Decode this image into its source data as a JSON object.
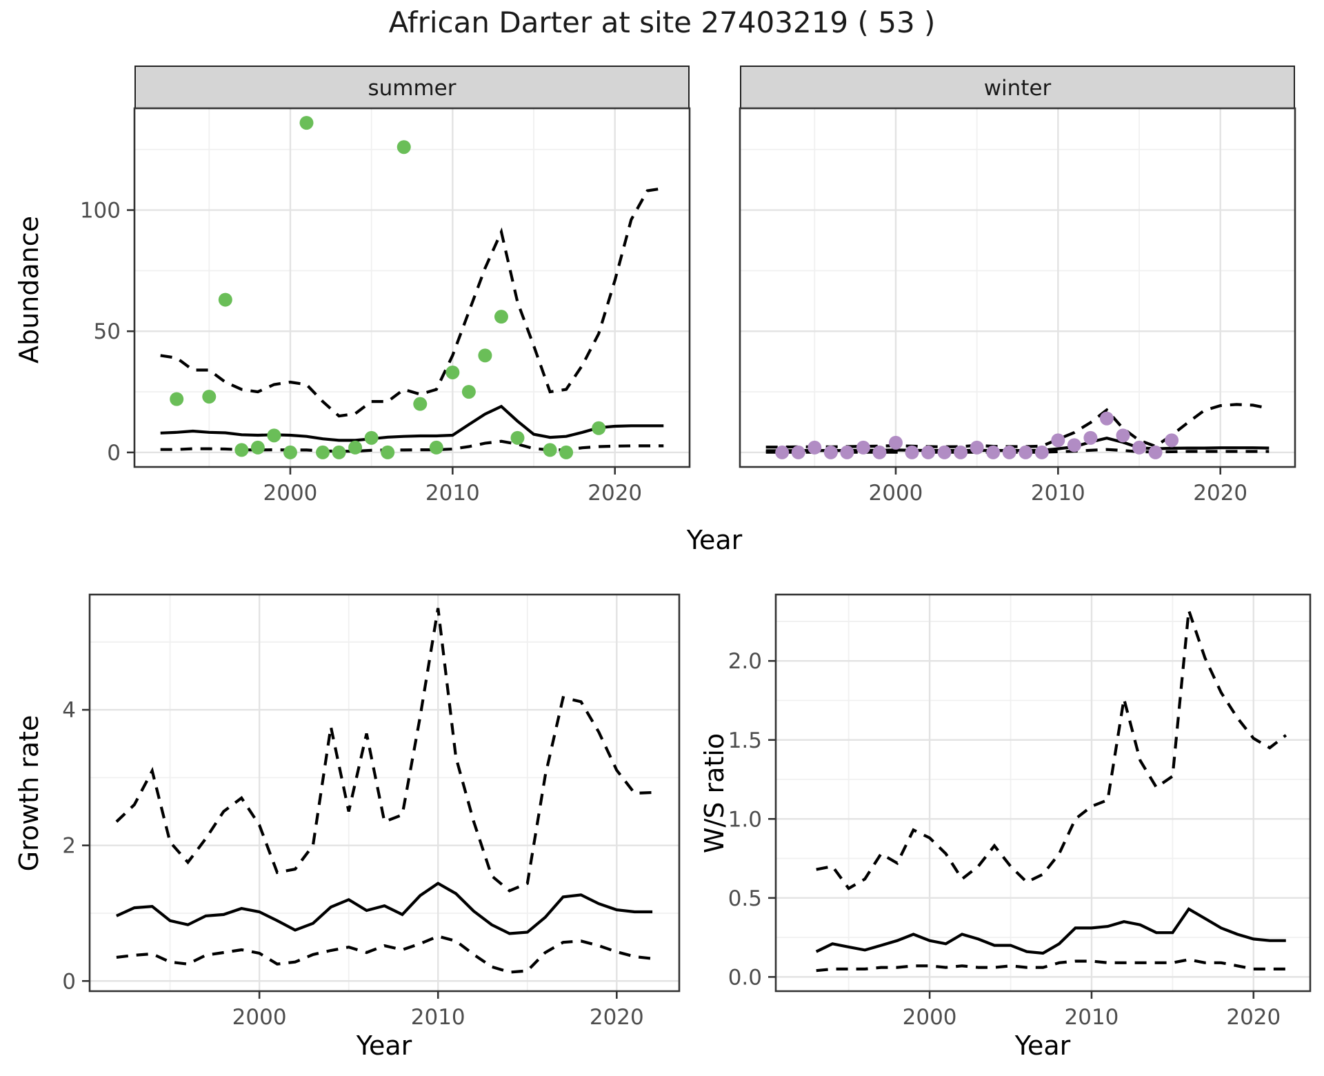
{
  "chart_data": {
    "title": "African Darter at site 27403219 ( 53 )",
    "facet_labels": [
      "summer",
      "winter"
    ],
    "colors": {
      "observed_summer": "#6abe58",
      "observed_winter": "#b18cc4",
      "fit_line": "#000000",
      "interval_line": "#000000",
      "strip_bg": "#d5d5d5",
      "axis_text": "#4d4d4d",
      "panel_border": "#333333",
      "grid_major": "#e3e3e3",
      "grid_minor": "#f0f0f0"
    },
    "abundance": {
      "type": "line",
      "ylabel": "Abundance",
      "xlabel": "Year",
      "yticks": {
        "values": [
          0,
          50,
          100
        ],
        "labels": [
          "0",
          "50",
          "100"
        ]
      },
      "xticks": {
        "values": [
          2000,
          2010,
          2020
        ],
        "labels": [
          "2000",
          "2010",
          "2020"
        ]
      },
      "yminor": [
        25,
        75,
        125
      ],
      "xminor": [
        1995,
        2005,
        2015
      ],
      "xlim": [
        1990.4,
        2024.6
      ],
      "ylim": [
        -6,
        142
      ],
      "model_years": [
        1992,
        1993,
        1994,
        1995,
        1996,
        1997,
        1998,
        1999,
        2000,
        2001,
        2002,
        2003,
        2004,
        2005,
        2006,
        2007,
        2008,
        2009,
        2010,
        2011,
        2012,
        2013,
        2014,
        2015,
        2016,
        2017,
        2018,
        2019,
        2020,
        2021,
        2022,
        2023
      ],
      "facets": [
        {
          "label": "summer",
          "obs_years": [
            1993,
            1995,
            1996,
            1997,
            1998,
            1999,
            2000,
            2001,
            2002,
            2003,
            2004,
            2005,
            2006,
            2007,
            2008,
            2009,
            2010,
            2011,
            2012,
            2013,
            2014,
            2016,
            2017,
            2019
          ],
          "obs_values": [
            22,
            23,
            63,
            1,
            2,
            7,
            0,
            136,
            0,
            0,
            2,
            6,
            0,
            126,
            20,
            2,
            33,
            25,
            40,
            56,
            6,
            1,
            0,
            10
          ],
          "fit": [
            8.0,
            8.3,
            8.8,
            8.3,
            8.1,
            7.3,
            7.1,
            7.3,
            7.1,
            6.6,
            5.6,
            5.0,
            5.0,
            5.6,
            6.3,
            6.6,
            6.8,
            6.8,
            7.1,
            11.5,
            15.8,
            19.0,
            12.9,
            7.5,
            6.2,
            6.6,
            8.3,
            10.2,
            10.8,
            11.0,
            11.0,
            11.0
          ],
          "lower": [
            1.2,
            1.2,
            1.5,
            1.5,
            1.4,
            1.1,
            1.0,
            1.1,
            1.0,
            1.0,
            0.6,
            0.5,
            0.5,
            0.9,
            1.0,
            1.0,
            1.1,
            1.1,
            1.4,
            2.4,
            3.8,
            4.6,
            3.4,
            1.6,
            1.0,
            1.1,
            1.9,
            2.4,
            2.6,
            2.7,
            2.7,
            2.7
          ],
          "upper": [
            40,
            39,
            34,
            34,
            29,
            26,
            25,
            28,
            29,
            28,
            21,
            15,
            16,
            21,
            21,
            26,
            24,
            26,
            40,
            58,
            76,
            91,
            62,
            44,
            25,
            26,
            36,
            49,
            71,
            96,
            108,
            109
          ]
        },
        {
          "label": "winter",
          "obs_years": [
            1993,
            1994,
            1995,
            1996,
            1997,
            1998,
            1999,
            2000,
            2001,
            2002,
            2003,
            2004,
            2005,
            2006,
            2007,
            2008,
            2009,
            2010,
            2011,
            2012,
            2013,
            2014,
            2015,
            2016,
            2017
          ],
          "obs_values": [
            0,
            0,
            2,
            0,
            0,
            2,
            0,
            4,
            0,
            0,
            0,
            0,
            2,
            0,
            0,
            0,
            0,
            5,
            3,
            6,
            14,
            7,
            2,
            0,
            5
          ],
          "fit": [
            0.7,
            0.7,
            0.8,
            0.8,
            0.8,
            0.8,
            0.9,
            0.9,
            1.0,
            0.9,
            0.8,
            0.8,
            0.8,
            0.9,
            0.8,
            0.8,
            0.8,
            0.9,
            1.5,
            2.3,
            4.3,
            5.9,
            4.2,
            1.9,
            1.5,
            1.7,
            1.8,
            1.8,
            1.9,
            1.9,
            1.9,
            1.8
          ],
          "lower": [
            0.1,
            0.1,
            0.1,
            0.1,
            0.1,
            0.1,
            0.1,
            0.1,
            0.1,
            0.1,
            0.1,
            0.1,
            0.1,
            0.1,
            0.1,
            0.1,
            0.1,
            0.1,
            0.3,
            0.5,
            0.9,
            1.2,
            0.8,
            0.3,
            0.2,
            0.3,
            0.4,
            0.4,
            0.4,
            0.4,
            0.4,
            0.4
          ],
          "upper": [
            2.2,
            2.2,
            2.3,
            2.3,
            2.3,
            2.4,
            2.5,
            2.6,
            2.8,
            2.6,
            2.4,
            2.3,
            2.4,
            2.9,
            2.5,
            2.4,
            2.4,
            2.6,
            5.4,
            8.2,
            12.3,
            17.5,
            9.9,
            5.0,
            2.5,
            7.1,
            12.3,
            17.3,
            19.3,
            19.8,
            19.5,
            18.2
          ]
        }
      ]
    },
    "growth_rate": {
      "type": "line",
      "ylabel": "Growth rate",
      "xlabel": "Year",
      "yticks": {
        "values": [
          0,
          2,
          4
        ],
        "labels": [
          "0",
          "2",
          "4"
        ]
      },
      "xticks": {
        "values": [
          2000,
          2010,
          2020
        ],
        "labels": [
          "2000",
          "2010",
          "2020"
        ]
      },
      "yminor": [
        1,
        3,
        5
      ],
      "xminor": [
        1995,
        2005,
        2015
      ],
      "xlim": [
        1990.5,
        2023.5
      ],
      "ylim": [
        -0.15,
        5.7
      ],
      "years": [
        1992,
        1993,
        1994,
        1995,
        1996,
        1997,
        1998,
        1999,
        2000,
        2001,
        2002,
        2003,
        2004,
        2005,
        2006,
        2007,
        2008,
        2009,
        2010,
        2011,
        2012,
        2013,
        2014,
        2015,
        2016,
        2017,
        2018,
        2019,
        2020,
        2021,
        2022
      ],
      "fit": [
        0.96,
        1.08,
        1.1,
        0.89,
        0.83,
        0.96,
        0.98,
        1.07,
        1.02,
        0.89,
        0.75,
        0.85,
        1.09,
        1.2,
        1.04,
        1.11,
        0.98,
        1.26,
        1.44,
        1.29,
        1.03,
        0.83,
        0.7,
        0.72,
        0.94,
        1.24,
        1.27,
        1.14,
        1.05,
        1.02,
        1.02
      ],
      "lower": [
        0.35,
        0.38,
        0.4,
        0.28,
        0.25,
        0.38,
        0.42,
        0.46,
        0.41,
        0.25,
        0.28,
        0.39,
        0.45,
        0.5,
        0.42,
        0.52,
        0.46,
        0.55,
        0.66,
        0.59,
        0.39,
        0.21,
        0.13,
        0.15,
        0.42,
        0.57,
        0.59,
        0.52,
        0.43,
        0.36,
        0.33
      ],
      "upper": [
        2.35,
        2.6,
        3.1,
        2.05,
        1.75,
        2.1,
        2.5,
        2.7,
        2.3,
        1.6,
        1.65,
        2.0,
        3.75,
        2.5,
        3.65,
        2.35,
        2.45,
        3.9,
        5.5,
        3.3,
        2.35,
        1.55,
        1.33,
        1.44,
        3.03,
        4.18,
        4.12,
        3.67,
        3.11,
        2.77,
        2.78
      ]
    },
    "ws_ratio": {
      "type": "line",
      "ylabel": "W/S ratio",
      "xlabel": "Year",
      "yticks": {
        "values": [
          0.0,
          0.5,
          1.0,
          1.5,
          2.0
        ],
        "labels": [
          "0.0",
          "0.5",
          "1.0",
          "1.5",
          "2.0"
        ]
      },
      "xticks": {
        "values": [
          2000,
          2010,
          2020
        ],
        "labels": [
          "2000",
          "2010",
          "2020"
        ]
      },
      "yminor": [
        0.25,
        0.75,
        1.25,
        1.75,
        2.25
      ],
      "xminor": [
        1995,
        2005,
        2015
      ],
      "xlim": [
        1990.5,
        2023.5
      ],
      "ylim": [
        -0.09,
        2.42
      ],
      "years": [
        1993,
        1994,
        1995,
        1996,
        1997,
        1998,
        1999,
        2000,
        2001,
        2002,
        2003,
        2004,
        2005,
        2006,
        2007,
        2008,
        2009,
        2010,
        2011,
        2012,
        2013,
        2014,
        2015,
        2016,
        2017,
        2018,
        2019,
        2020,
        2021,
        2022
      ],
      "fit": [
        0.16,
        0.21,
        0.19,
        0.17,
        0.2,
        0.23,
        0.27,
        0.23,
        0.21,
        0.27,
        0.24,
        0.2,
        0.2,
        0.16,
        0.15,
        0.21,
        0.31,
        0.31,
        0.32,
        0.35,
        0.33,
        0.28,
        0.28,
        0.43,
        0.37,
        0.31,
        0.27,
        0.24,
        0.23,
        0.23
      ],
      "lower": [
        0.04,
        0.05,
        0.05,
        0.05,
        0.06,
        0.06,
        0.07,
        0.07,
        0.06,
        0.07,
        0.06,
        0.06,
        0.07,
        0.06,
        0.06,
        0.09,
        0.1,
        0.1,
        0.09,
        0.09,
        0.09,
        0.09,
        0.09,
        0.11,
        0.09,
        0.09,
        0.07,
        0.05,
        0.05,
        0.05
      ],
      "upper": [
        0.68,
        0.7,
        0.56,
        0.62,
        0.78,
        0.72,
        0.93,
        0.88,
        0.78,
        0.62,
        0.7,
        0.83,
        0.7,
        0.6,
        0.65,
        0.78,
        1.0,
        1.08,
        1.12,
        1.76,
        1.37,
        1.2,
        1.27,
        2.32,
        2.02,
        1.8,
        1.64,
        1.51,
        1.45,
        1.53
      ]
    }
  }
}
